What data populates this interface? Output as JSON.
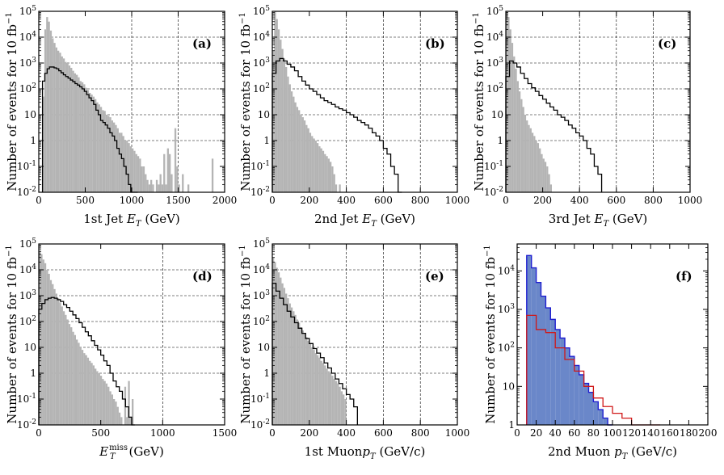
{
  "figure": {
    "ylabel": "Number of events for 10 fb",
    "ylabel_exp": "−1"
  },
  "chart_data": [
    {
      "type": "histogram",
      "panel": "(a)",
      "xlabel_pre": "1st Jet ",
      "xlabel_var": "E",
      "xlabel_sub": "T",
      "xlabel_post": " (GeV)",
      "xlim": [
        0,
        2000
      ],
      "xticks": [
        0,
        500,
        1000,
        1500,
        2000
      ],
      "ylog": true,
      "ylim": [
        0.01,
        100000
      ],
      "yticks": [
        0.01,
        0.1,
        1,
        10,
        100,
        1000,
        10000,
        100000
      ],
      "ytick_labels": [
        [
          "10",
          "-2"
        ],
        [
          "10",
          "-1"
        ],
        [
          "1",
          ""
        ],
        [
          "10",
          ""
        ],
        [
          "10",
          "2"
        ],
        [
          "10",
          "3"
        ],
        [
          "10",
          "4"
        ],
        [
          "10",
          "5"
        ]
      ],
      "xgrid": [
        1000,
        1500
      ],
      "ygrid": [
        1,
        10,
        100,
        1000,
        10000
      ],
      "bin_edges": [
        40,
        2000
      ],
      "series": [
        {
          "name": "background",
          "style": "filled-gray",
          "values": [
            50,
            20000,
            60000,
            40000,
            18000,
            9000,
            6000,
            4000,
            3000,
            2500,
            1800,
            1500,
            1100,
            1000,
            800,
            650,
            500,
            400,
            350,
            280,
            200,
            180,
            150,
            110,
            90,
            70,
            60,
            50,
            40,
            30,
            25,
            20,
            15,
            14,
            10,
            9,
            8,
            6,
            5,
            4,
            3,
            2,
            2,
            1.5,
            1,
            1,
            0.8,
            0.6,
            0.5,
            0.4,
            0.3,
            0.25,
            0.2,
            0.1,
            0.1,
            0.05,
            0.03,
            0.02,
            0.03,
            0.02,
            0.01,
            0.03,
            0.02,
            0.05,
            0.02,
            0.3,
            0.02,
            0.5,
            0.3,
            0.05,
            0.01,
            3,
            0.1,
            0.02,
            0.01,
            0.05,
            0.01,
            0.01,
            0.02,
            0.01,
            0.01,
            0.01,
            0.01,
            0.01,
            0.01,
            0.01,
            0.01,
            0.01,
            0.01,
            0.01,
            0.01,
            0.2,
            0.01,
            0.01,
            0.01,
            0.01,
            0.01,
            0.01
          ]
        },
        {
          "name": "signal",
          "style": "line-black",
          "values": [
            200,
            400,
            600,
            700,
            700,
            650,
            600,
            500,
            420,
            350,
            300,
            260,
            220,
            190,
            160,
            140,
            120,
            100,
            80,
            60,
            45,
            35,
            25,
            15,
            10,
            6,
            5,
            4,
            3,
            2,
            1.5,
            1,
            0.5,
            0.3,
            0.2,
            0.1,
            0.05,
            0.02,
            0.01,
            0.01,
            0.01
          ]
        }
      ]
    },
    {
      "type": "histogram",
      "panel": "(b)",
      "xlabel_pre": "2nd Jet ",
      "xlabel_var": "E",
      "xlabel_sub": "T",
      "xlabel_post": " (GeV)",
      "xlim": [
        0,
        1000
      ],
      "xticks": [
        0,
        200,
        400,
        600,
        800,
        1000
      ],
      "ylog": true,
      "ylim": [
        0.01,
        100000
      ],
      "yticks": [
        0.01,
        0.1,
        1,
        10,
        100,
        1000,
        10000,
        100000
      ],
      "ytick_labels": [
        [
          "10",
          "-2"
        ],
        [
          "10",
          "-1"
        ],
        [
          "1",
          ""
        ],
        [
          "10",
          ""
        ],
        [
          "10",
          "2"
        ],
        [
          "10",
          "3"
        ],
        [
          "10",
          "4"
        ],
        [
          "10",
          "5"
        ]
      ],
      "xgrid": [
        400,
        600,
        800
      ],
      "ygrid": [
        1,
        10,
        100,
        1000,
        10000
      ],
      "series": [
        {
          "name": "background",
          "style": "filled-gray",
          "values": [
            3000,
            100000,
            50000,
            20000,
            8000,
            3500,
            1500,
            700,
            300,
            150,
            80,
            50,
            30,
            20,
            15,
            10,
            8,
            6,
            4,
            3,
            2,
            1.5,
            1.2,
            1,
            0.8,
            0.6,
            0.5,
            0.4,
            0.3,
            0.25,
            0.2,
            0.15,
            0.1,
            0.05,
            0.02,
            0.01,
            0.02,
            0.01,
            0.01,
            0.01
          ]
        },
        {
          "name": "signal",
          "style": "line-black",
          "values": [
            400,
            1200,
            1500,
            1200,
            900,
            700,
            500,
            300,
            200,
            140,
            100,
            80,
            60,
            45,
            35,
            30,
            25,
            20,
            17,
            15,
            12,
            10,
            8,
            6,
            5,
            4,
            3,
            2,
            1.5,
            1,
            0.5,
            0.3,
            0.1,
            0.05,
            0.01
          ]
        }
      ]
    },
    {
      "type": "histogram",
      "panel": "(c)",
      "xlabel_pre": "3rd Jet ",
      "xlabel_var": "E",
      "xlabel_sub": "T",
      "xlabel_post": " (GeV)",
      "xlim": [
        0,
        1000
      ],
      "xticks": [
        0,
        200,
        400,
        600,
        800,
        1000
      ],
      "ylog": true,
      "ylim": [
        0.01,
        100000
      ],
      "yticks": [
        0.01,
        0.1,
        1,
        10,
        100,
        1000,
        10000,
        100000
      ],
      "ytick_labels": [
        [
          "10",
          "-2"
        ],
        [
          "10",
          "-1"
        ],
        [
          "1",
          ""
        ],
        [
          "10",
          ""
        ],
        [
          "10",
          "2"
        ],
        [
          "10",
          "3"
        ],
        [
          "10",
          "4"
        ],
        [
          "10",
          "5"
        ]
      ],
      "xgrid": [
        400,
        600,
        800
      ],
      "ygrid": [
        1,
        10,
        100,
        1000,
        10000
      ],
      "series": [
        {
          "name": "background",
          "style": "filled-gray",
          "values": [
            100000,
            60000,
            20000,
            6000,
            1800,
            600,
            200,
            80,
            40,
            20,
            10,
            6,
            4,
            3,
            2,
            1.5,
            1,
            0.8,
            0.5,
            0.3,
            0.2,
            0.15,
            0.1,
            0.05,
            0.02,
            0.01
          ]
        },
        {
          "name": "signal",
          "style": "line-black",
          "values": [
            300,
            1200,
            1000,
            700,
            400,
            250,
            160,
            110,
            80,
            55,
            40,
            28,
            20,
            15,
            10,
            8,
            6,
            4,
            3,
            2,
            1.5,
            1,
            0.5,
            0.3,
            0.1,
            0.05
          ]
        }
      ]
    },
    {
      "type": "histogram",
      "panel": "(d)",
      "xlabel_pre": "",
      "xlabel_var": "E",
      "xlabel_sub": "T",
      "xlabel_sup": "miss",
      "xlabel_post": " (GeV)",
      "xlim": [
        0,
        1500
      ],
      "xticks": [
        0,
        500,
        1000,
        1500
      ],
      "ylog": true,
      "ylim": [
        0.01,
        100000
      ],
      "yticks": [
        0.01,
        0.1,
        1,
        10,
        100,
        1000,
        10000,
        100000
      ],
      "ytick_labels": [
        [
          "10",
          "-2"
        ],
        [
          "10",
          "-1"
        ],
        [
          "1",
          ""
        ],
        [
          "10",
          ""
        ],
        [
          "10",
          "2"
        ],
        [
          "10",
          "3"
        ],
        [
          "10",
          "4"
        ],
        [
          "10",
          "5"
        ]
      ],
      "xgrid": [
        1000
      ],
      "ygrid": [
        1,
        10,
        100,
        1000,
        10000
      ],
      "series": [
        {
          "name": "background",
          "style": "filled-gray",
          "values": [
            50000,
            40000,
            25000,
            18000,
            10000,
            7000,
            4000,
            2800,
            1800,
            1200,
            800,
            550,
            380,
            250,
            180,
            120,
            80,
            60,
            40,
            30,
            20,
            15,
            10,
            8,
            6,
            5,
            4,
            3,
            2.5,
            2,
            1.5,
            1.2,
            1,
            0.8,
            0.6,
            0.5,
            0.4,
            0.3,
            0.2,
            0.15,
            0.1,
            0.08,
            0.05,
            0.03,
            0.02,
            0.01,
            0.3,
            0.02,
            0.5,
            0.02,
            0.1,
            0.01
          ]
        },
        {
          "name": "signal",
          "style": "line-black",
          "values": [
            300,
            500,
            700,
            800,
            850,
            800,
            700,
            600,
            450,
            350,
            250,
            180,
            130,
            90,
            60,
            40,
            28,
            18,
            12,
            8,
            5,
            3,
            2,
            1,
            0.5,
            0.3,
            0.2,
            0.1,
            0.05,
            0.02,
            0.01
          ]
        }
      ]
    },
    {
      "type": "histogram",
      "panel": "(e)",
      "xlabel_pre": "1st Muon",
      "xlabel_var": "p",
      "xlabel_sub": "T",
      "xlabel_post": " (GeV/c)",
      "xlim": [
        0,
        1000
      ],
      "xticks": [
        0,
        200,
        400,
        600,
        800,
        1000
      ],
      "ylog": true,
      "ylim": [
        0.01,
        100000
      ],
      "yticks": [
        0.01,
        0.1,
        1,
        10,
        100,
        1000,
        10000,
        100000
      ],
      "ytick_labels": [
        [
          "10",
          "-2"
        ],
        [
          "10",
          "-1"
        ],
        [
          "1",
          ""
        ],
        [
          "10",
          ""
        ],
        [
          "10",
          "2"
        ],
        [
          "10",
          "3"
        ],
        [
          "10",
          "4"
        ],
        [
          "10",
          "5"
        ]
      ],
      "xgrid": [
        400,
        600,
        800
      ],
      "ygrid": [
        1,
        10,
        100,
        1000,
        10000
      ],
      "series": [
        {
          "name": "background",
          "style": "filled-gray",
          "values": [
            30000,
            20000,
            12000,
            8000,
            5000,
            3000,
            2000,
            1200,
            800,
            500,
            350,
            250,
            180,
            120,
            90,
            60,
            45,
            35,
            25,
            18,
            14,
            10,
            8,
            6,
            5,
            4,
            3,
            2.5,
            2,
            1.5,
            1.2,
            1,
            0.8,
            0.6,
            0.5,
            0.4,
            0.3,
            0.2,
            0.15,
            0.1
          ]
        },
        {
          "name": "signal",
          "style": "line-black",
          "values": [
            3000,
            1500,
            800,
            450,
            250,
            150,
            90,
            55,
            35,
            22,
            14,
            9,
            6,
            4,
            2.5,
            1.6,
            1,
            0.6,
            0.4,
            0.25,
            0.15,
            0.1,
            0.05
          ]
        }
      ]
    },
    {
      "type": "histogram",
      "panel": "(f)",
      "xlabel_pre": "2nd Muon ",
      "xlabel_var": "p",
      "xlabel_sub": "T",
      "xlabel_post": " (GeV/c)",
      "xlim": [
        0,
        200
      ],
      "xticks": [
        0,
        20,
        40,
        60,
        80,
        100,
        120,
        140,
        160,
        180,
        200
      ],
      "ylog": true,
      "ylim": [
        1,
        50000
      ],
      "yticks": [
        1,
        10,
        100,
        1000,
        10000
      ],
      "ytick_labels": [
        [
          "1",
          ""
        ],
        [
          "10",
          ""
        ],
        [
          "10",
          "2"
        ],
        [
          "10",
          "3"
        ],
        [
          "10",
          "4"
        ]
      ],
      "xgrid": [],
      "ygrid": [],
      "series": [
        {
          "name": "background",
          "style": "filled-blue",
          "values": [
            25000,
            12000,
            5000,
            2200,
            1100,
            550,
            300,
            180,
            100,
            60,
            35,
            20,
            12,
            7,
            4,
            2.5,
            1.5,
            1
          ]
        },
        {
          "name": "signal",
          "style": "line-red",
          "values": [
            700,
            300,
            250,
            100,
            50,
            25,
            10,
            5,
            3,
            2,
            1.5,
            1,
            0.9,
            0.8
          ]
        }
      ]
    }
  ]
}
